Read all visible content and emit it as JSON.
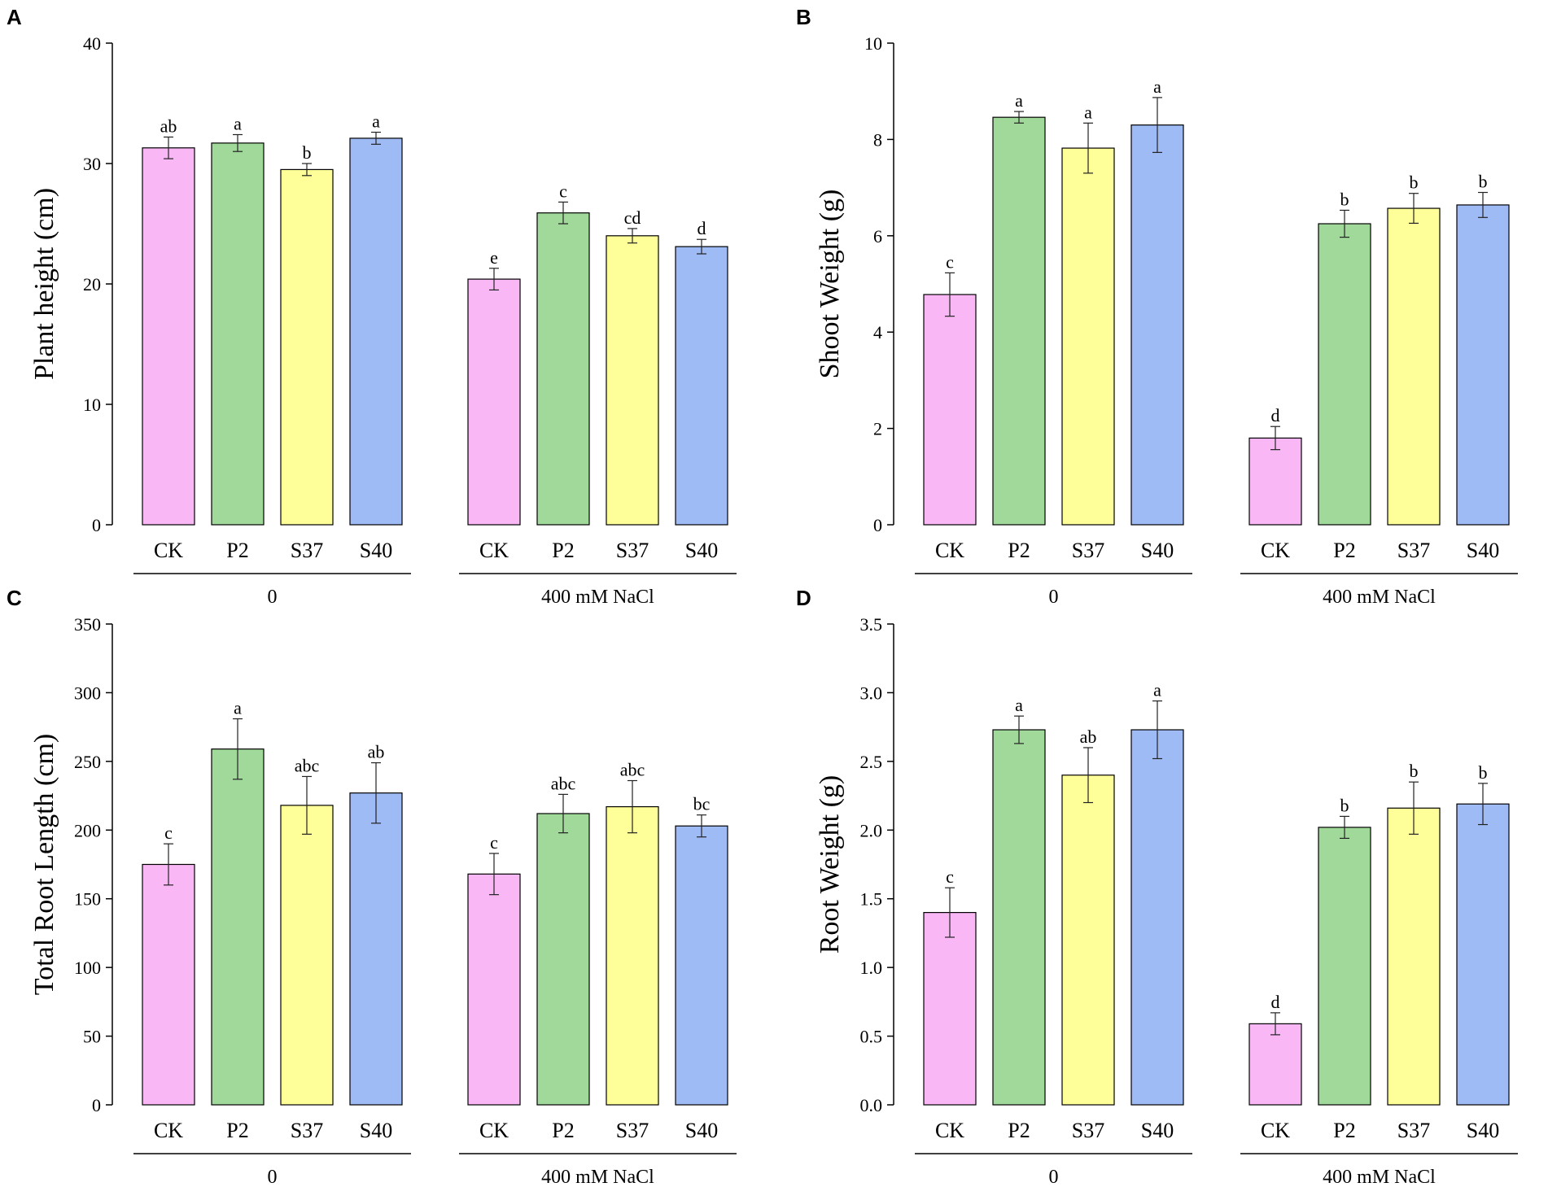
{
  "series_colors": {
    "CK": "#F9B8F5",
    "P2": "#A1D99B",
    "S37": "#FFFF99",
    "S40": "#9EBBF5"
  },
  "chart_data": [
    {
      "panel": "A",
      "type": "bar",
      "ylabel": "Plant height (cm)",
      "ylim": [
        0,
        40
      ],
      "yticks": [
        0,
        10,
        20,
        30,
        40
      ],
      "ytick_labels": [
        "0",
        "10",
        "20",
        "30",
        "40"
      ],
      "groups": [
        {
          "label": "0",
          "bars": [
            {
              "category": "CK",
              "value": 31.3,
              "error": 0.9,
              "letter": "ab"
            },
            {
              "category": "P2",
              "value": 31.7,
              "error": 0.7,
              "letter": "a"
            },
            {
              "category": "S37",
              "value": 29.5,
              "error": 0.5,
              "letter": "b"
            },
            {
              "category": "S40",
              "value": 32.1,
              "error": 0.5,
              "letter": "a"
            }
          ]
        },
        {
          "label": "400 mM NaCl",
          "bars": [
            {
              "category": "CK",
              "value": 20.4,
              "error": 0.9,
              "letter": "e"
            },
            {
              "category": "P2",
              "value": 25.9,
              "error": 0.9,
              "letter": "c"
            },
            {
              "category": "S37",
              "value": 24.0,
              "error": 0.6,
              "letter": "cd"
            },
            {
              "category": "S40",
              "value": 23.1,
              "error": 0.6,
              "letter": "d"
            }
          ]
        }
      ]
    },
    {
      "panel": "B",
      "type": "bar",
      "ylabel": "Shoot Weight (g)",
      "ylim": [
        0,
        10
      ],
      "yticks": [
        0,
        2,
        4,
        6,
        8,
        10
      ],
      "ytick_labels": [
        "0",
        "2",
        "4",
        "6",
        "8",
        "10"
      ],
      "groups": [
        {
          "label": "0",
          "bars": [
            {
              "category": "CK",
              "value": 4.78,
              "error": 0.45,
              "letter": "c"
            },
            {
              "category": "P2",
              "value": 8.46,
              "error": 0.12,
              "letter": "a"
            },
            {
              "category": "S37",
              "value": 7.82,
              "error": 0.52,
              "letter": "a"
            },
            {
              "category": "S40",
              "value": 8.3,
              "error": 0.57,
              "letter": "a"
            }
          ]
        },
        {
          "label": "400 mM NaCl",
          "bars": [
            {
              "category": "CK",
              "value": 1.8,
              "error": 0.24,
              "letter": "d"
            },
            {
              "category": "P2",
              "value": 6.25,
              "error": 0.28,
              "letter": "b"
            },
            {
              "category": "S37",
              "value": 6.57,
              "error": 0.31,
              "letter": "b"
            },
            {
              "category": "S40",
              "value": 6.64,
              "error": 0.26,
              "letter": "b"
            }
          ]
        }
      ]
    },
    {
      "panel": "C",
      "type": "bar",
      "ylabel": "Total Root Length (cm)",
      "ylim": [
        0,
        350
      ],
      "yticks": [
        0,
        50,
        100,
        150,
        200,
        250,
        300,
        350
      ],
      "ytick_labels": [
        "0",
        "50",
        "100",
        "150",
        "200",
        "250",
        "300",
        "350"
      ],
      "groups": [
        {
          "label": "0",
          "bars": [
            {
              "category": "CK",
              "value": 175,
              "error": 15,
              "letter": "c"
            },
            {
              "category": "P2",
              "value": 259,
              "error": 22,
              "letter": "a"
            },
            {
              "category": "S37",
              "value": 218,
              "error": 21,
              "letter": "abc"
            },
            {
              "category": "S40",
              "value": 227,
              "error": 22,
              "letter": "ab"
            }
          ]
        },
        {
          "label": "400 mM NaCl",
          "bars": [
            {
              "category": "CK",
              "value": 168,
              "error": 15,
              "letter": "c"
            },
            {
              "category": "P2",
              "value": 212,
              "error": 14,
              "letter": "abc"
            },
            {
              "category": "S37",
              "value": 217,
              "error": 19,
              "letter": "abc"
            },
            {
              "category": "S40",
              "value": 203,
              "error": 8,
              "letter": "bc"
            }
          ]
        }
      ]
    },
    {
      "panel": "D",
      "type": "bar",
      "ylabel": "Root Weight (g)",
      "ylim": [
        0,
        3.5
      ],
      "yticks": [
        0,
        0.5,
        1.0,
        1.5,
        2.0,
        2.5,
        3.0,
        3.5
      ],
      "ytick_labels": [
        "0.0",
        "0.5",
        "1.0",
        "1.5",
        "2.0",
        "2.5",
        "3.0",
        "3.5"
      ],
      "groups": [
        {
          "label": "0",
          "bars": [
            {
              "category": "CK",
              "value": 1.4,
              "error": 0.18,
              "letter": "c"
            },
            {
              "category": "P2",
              "value": 2.73,
              "error": 0.1,
              "letter": "a"
            },
            {
              "category": "S37",
              "value": 2.4,
              "error": 0.2,
              "letter": "ab"
            },
            {
              "category": "S40",
              "value": 2.73,
              "error": 0.21,
              "letter": "a"
            }
          ]
        },
        {
          "label": "400 mM NaCl",
          "bars": [
            {
              "category": "CK",
              "value": 0.59,
              "error": 0.08,
              "letter": "d"
            },
            {
              "category": "P2",
              "value": 2.02,
              "error": 0.08,
              "letter": "b"
            },
            {
              "category": "S37",
              "value": 2.16,
              "error": 0.19,
              "letter": "b"
            },
            {
              "category": "S40",
              "value": 2.19,
              "error": 0.15,
              "letter": "b"
            }
          ]
        }
      ]
    }
  ]
}
